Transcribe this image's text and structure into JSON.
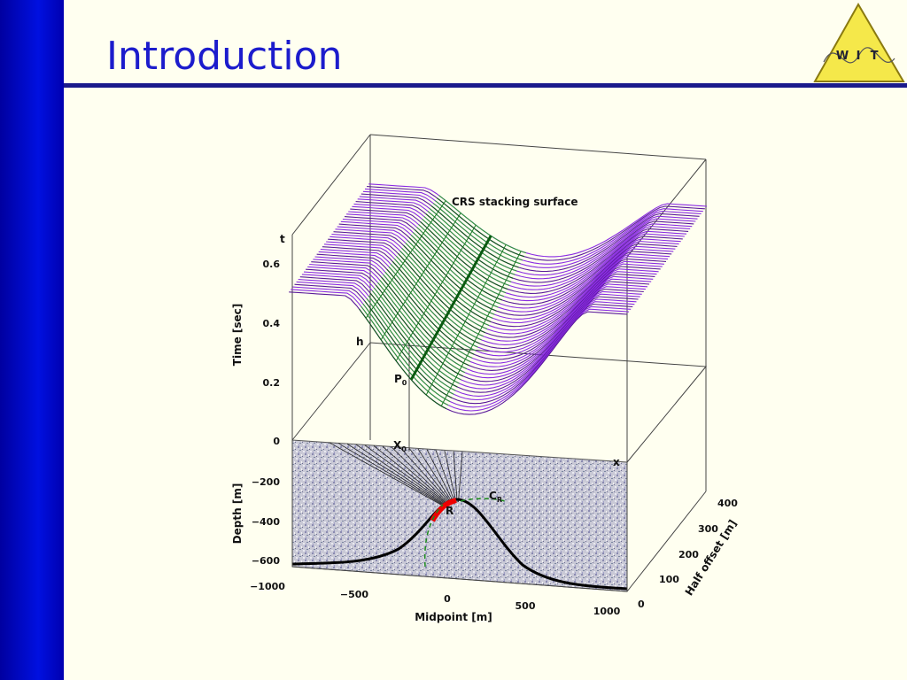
{
  "header": {
    "title": "Introduction",
    "logo": [
      "W",
      "I",
      "T"
    ]
  },
  "figure": {
    "surface_label": "CRS stacking surface",
    "time_axis": {
      "label": "Time [sec]",
      "ticks": [
        "0",
        "0.2",
        "0.4",
        "0.6"
      ],
      "end_label": "t"
    },
    "depth_axis": {
      "label": "Depth [m]",
      "ticks": [
        "−200",
        "−400",
        "−600"
      ]
    },
    "midpoint_axis": {
      "label": "Midpoint [m]",
      "ticks": [
        "−1000",
        "−500",
        "0",
        "500",
        "1000"
      ],
      "end_label": "x"
    },
    "half_offset_axis": {
      "label": "Half offset [m]",
      "ticks": [
        "0",
        "100",
        "200",
        "300",
        "400"
      ],
      "end_label": "h"
    },
    "points": [
      {
        "text": "P",
        "sub": "0"
      },
      {
        "text": "X",
        "sub": "0"
      },
      {
        "text": "C",
        "sub": "R"
      },
      {
        "text": "R"
      }
    ]
  }
}
